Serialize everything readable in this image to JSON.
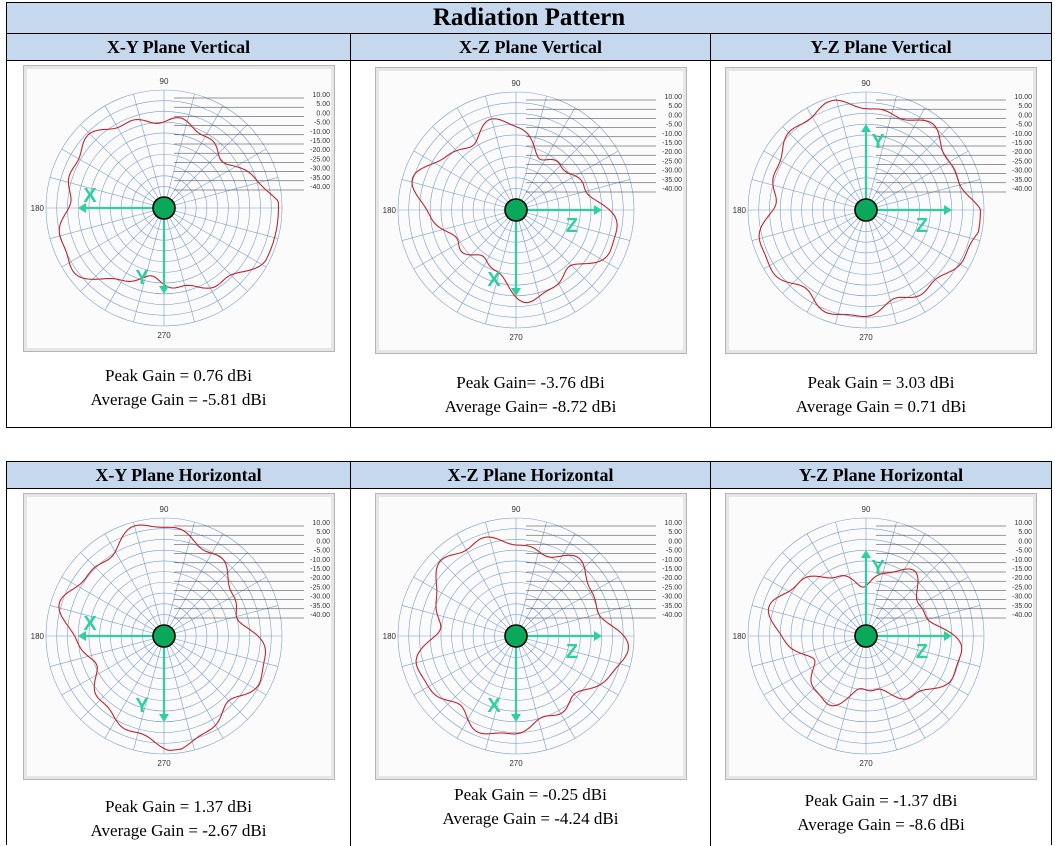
{
  "title": "Radiation Pattern",
  "colors": {
    "header_fill": "#c5d8ee",
    "pattern_line": "#c0262c",
    "axis_arrow": "#2fcfa0",
    "center_dot": "#0aa85a",
    "grid": "#4f7fbf"
  },
  "polar_labels": {
    "angle_top": "90",
    "angle_left": "180",
    "angle_bottom": "270",
    "scale": [
      "10.00",
      "5.00",
      "0.00",
      "-5.00",
      "-10.00",
      "-15.00",
      "-20.00",
      "-25.00",
      "-30.00",
      "-35.00",
      "-40.00"
    ]
  },
  "plots": [
    {
      "title": "X-Y Plane Vertical",
      "peak_gain": "Peak Gain = 0.76 dBi",
      "avg_gain": "Average Gain = -5.81 dBi",
      "axes": [
        {
          "label": "X",
          "dir": "left"
        },
        {
          "label": "Y",
          "dir": "down"
        }
      ],
      "pattern": {
        "base": 0.8,
        "harmonics": [
          [
            2,
            0.12,
            0.4
          ],
          [
            3,
            0.08,
            1.1
          ],
          [
            5,
            0.05,
            0.3
          ]
        ]
      }
    },
    {
      "title": "X-Z Plane Vertical",
      "peak_gain": "Peak Gain= -3.76 dBi",
      "avg_gain": "Average Gain= -8.72 dBi",
      "axes": [
        {
          "label": "Z",
          "dir": "right"
        },
        {
          "label": "X",
          "dir": "down"
        }
      ],
      "pattern": {
        "base": 0.68,
        "harmonics": [
          [
            2,
            0.14,
            1.2
          ],
          [
            4,
            0.07,
            0.2
          ],
          [
            6,
            0.06,
            2.0
          ]
        ]
      }
    },
    {
      "title": "Y-Z Plane Vertical",
      "peak_gain": "Peak Gain = 3.03 dBi",
      "avg_gain": "Average Gain = 0.71 dBi",
      "axes": [
        {
          "label": "Y",
          "dir": "up"
        },
        {
          "label": "Z",
          "dir": "right"
        }
      ],
      "pattern": {
        "base": 0.88,
        "harmonics": [
          [
            3,
            0.05,
            0.6
          ],
          [
            5,
            0.04,
            1.5
          ],
          [
            7,
            0.03,
            0.2
          ]
        ]
      }
    },
    {
      "title": "X-Y Plane Horizontal",
      "peak_gain": "Peak Gain = 1.37 dBi",
      "avg_gain": "Average Gain = -2.67 dBi",
      "axes": [
        {
          "label": "X",
          "dir": "left"
        },
        {
          "label": "Y",
          "dir": "down"
        }
      ],
      "pattern": {
        "base": 0.82,
        "harmonics": [
          [
            2,
            0.1,
            2.4
          ],
          [
            4,
            0.06,
            0.9
          ],
          [
            6,
            0.05,
            1.7
          ]
        ]
      }
    },
    {
      "title": "X-Z Plane Horizontal",
      "peak_gain": "Peak Gain = -0.25 dBi",
      "avg_gain": "Average Gain = -4.24 dBi",
      "axes": [
        {
          "label": "Z",
          "dir": "right"
        },
        {
          "label": "X",
          "dir": "down"
        }
      ],
      "pattern": {
        "base": 0.8,
        "harmonics": [
          [
            3,
            0.06,
            0.3
          ],
          [
            5,
            0.06,
            1.4
          ],
          [
            7,
            0.04,
            0.8
          ]
        ]
      }
    },
    {
      "title": "Y-Z Plane Horizontal",
      "peak_gain": "Peak Gain = -1.37 dBi",
      "avg_gain": "Average Gain = -8.6 dBi",
      "axes": [
        {
          "label": "Y",
          "dir": "up"
        },
        {
          "label": "Z",
          "dir": "right"
        }
      ],
      "pattern": {
        "base": 0.62,
        "harmonics": [
          [
            2,
            0.12,
            0.5
          ],
          [
            4,
            0.1,
            1.9
          ],
          [
            6,
            0.05,
            0.6
          ]
        ]
      }
    }
  ]
}
